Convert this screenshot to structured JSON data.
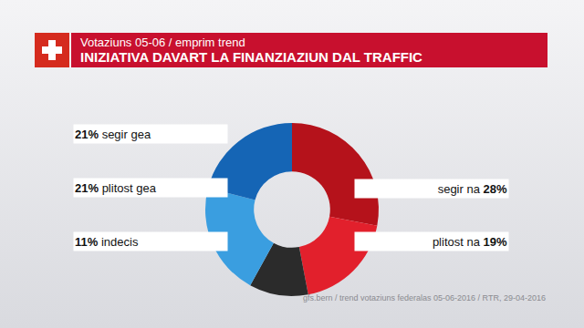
{
  "chart_data": {
    "type": "pie",
    "title": "INIZIATIVA DAVART LA FINANZIAZIUN DAL TRAFFIC",
    "subtitle": "Votaziuns 05-06 / emprim trend",
    "categories": [
      "segir na",
      "plitost na",
      "indecis",
      "plitost gea",
      "segir gea"
    ],
    "values": [
      28,
      19,
      11,
      21,
      21
    ],
    "value_labels": [
      "28%",
      "19%",
      "11%",
      "21%",
      "21%"
    ],
    "colors": [
      "#b5121b",
      "#e2202c",
      "#2b2b2b",
      "#3a9ee0",
      "#1565b5"
    ],
    "data_labels": true,
    "annotations": [
      "gfs.bern / trend votaziuns federalas 05-06-2016 / RTR, 29-04-2016"
    ]
  }
}
